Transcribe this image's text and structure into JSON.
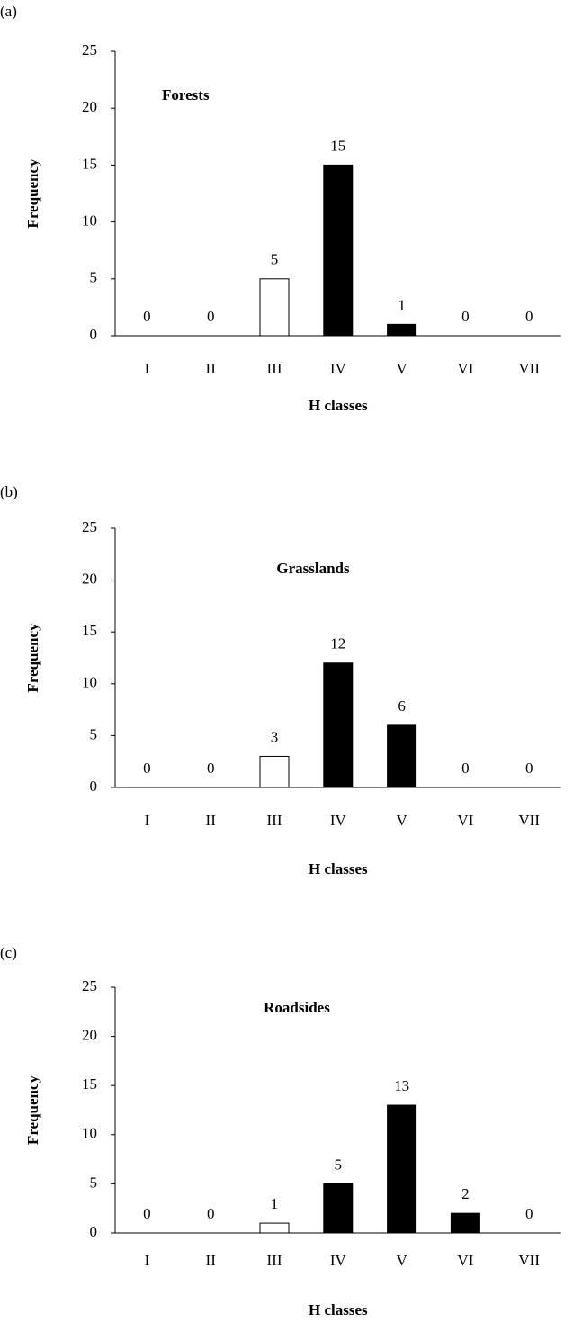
{
  "chart_data": [
    {
      "type": "bar",
      "panel_label": "(a)",
      "title": "Forests",
      "x_label": "H classes",
      "y_label": "Frequency",
      "categories": [
        "I",
        "II",
        "III",
        "IV",
        "V",
        "VI",
        "VII"
      ],
      "values": [
        0,
        0,
        5,
        15,
        1,
        0,
        0
      ],
      "colors": [
        "#000000",
        "#000000",
        "#ffffff",
        "#000000",
        "#000000",
        "#000000",
        "#000000"
      ],
      "ylim": [
        0,
        25
      ],
      "yticks": [
        0,
        5,
        10,
        15,
        20,
        25
      ]
    },
    {
      "type": "bar",
      "panel_label": "(b)",
      "title": "Grasslands",
      "x_label": "H classes",
      "y_label": "Frequency",
      "categories": [
        "I",
        "II",
        "III",
        "IV",
        "V",
        "VI",
        "VII"
      ],
      "values": [
        0,
        0,
        3,
        12,
        6,
        0,
        0
      ],
      "colors": [
        "#000000",
        "#000000",
        "#ffffff",
        "#000000",
        "#000000",
        "#000000",
        "#000000"
      ],
      "ylim": [
        0,
        25
      ],
      "yticks": [
        0,
        5,
        10,
        15,
        20,
        25
      ]
    },
    {
      "type": "bar",
      "panel_label": "(c)",
      "title": "Roadsides",
      "x_label": "H classes",
      "y_label": "Frequency",
      "categories": [
        "I",
        "II",
        "III",
        "IV",
        "V",
        "VI",
        "VII"
      ],
      "values": [
        0,
        0,
        1,
        5,
        13,
        2,
        0
      ],
      "colors": [
        "#000000",
        "#000000",
        "#ffffff",
        "#000000",
        "#000000",
        "#000000",
        "#000000"
      ],
      "ylim": [
        0,
        25
      ],
      "yticks": [
        0,
        5,
        10,
        15,
        20,
        25
      ]
    }
  ]
}
